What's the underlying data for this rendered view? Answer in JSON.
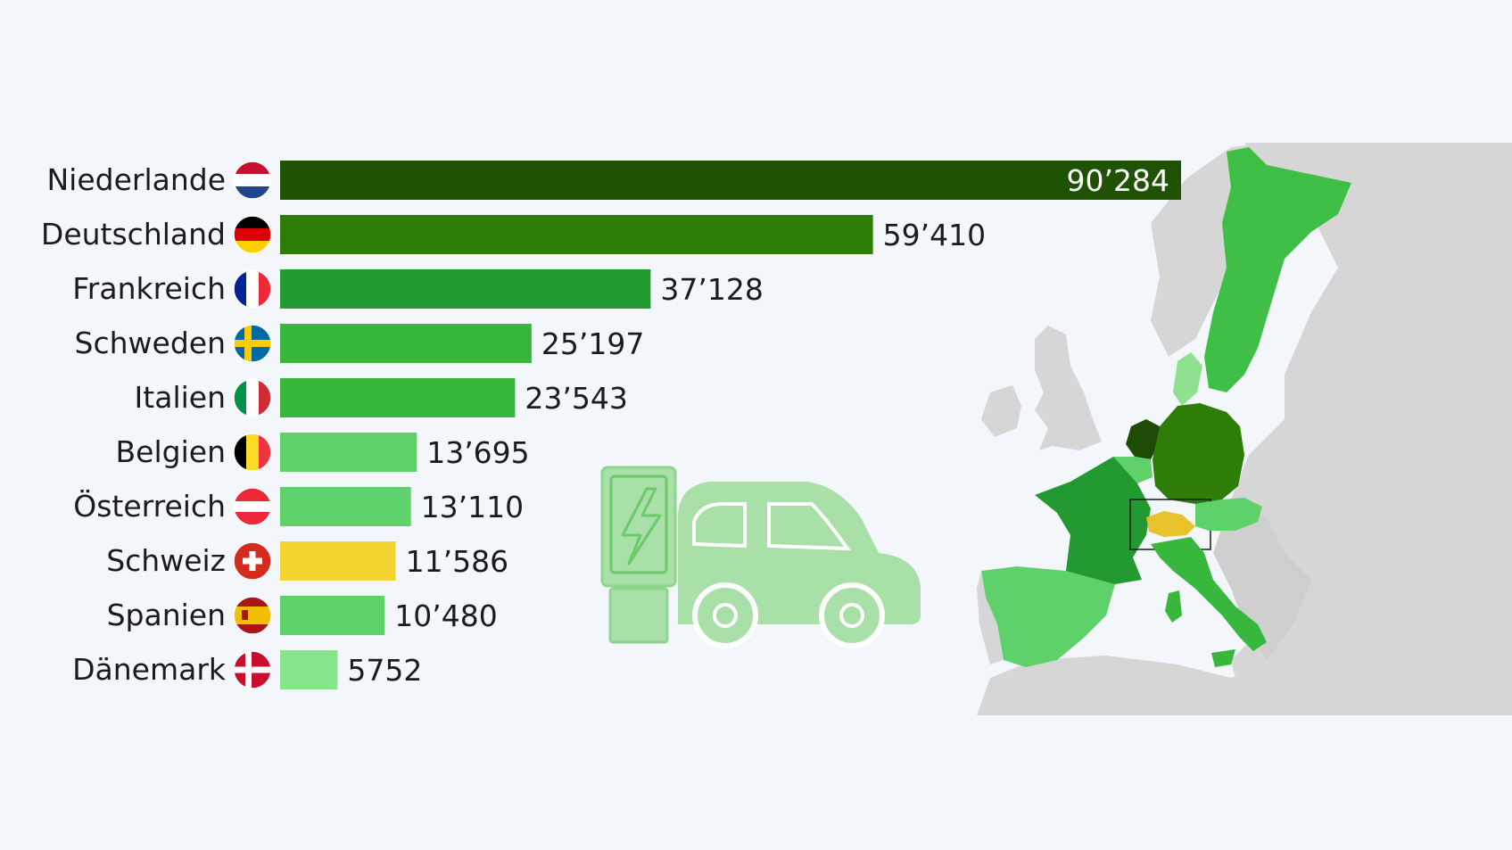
{
  "chart_data": {
    "type": "bar",
    "orientation": "horizontal",
    "categories": [
      "Niederlande",
      "Deutschland",
      "Frankreich",
      "Schweden",
      "Italien",
      "Belgien",
      "Österreich",
      "Schweiz",
      "Spanien",
      "Dänemark"
    ],
    "values": [
      90284,
      59410,
      37128,
      25197,
      23543,
      13695,
      13110,
      11586,
      10480,
      5752
    ],
    "value_labels": [
      "90’284",
      "59’410",
      "37’128",
      "25’197",
      "23’543",
      "13’695",
      "13’110",
      "11’586",
      "10’480",
      "5752"
    ],
    "bar_colors": [
      "#1f5205",
      "#2e7d09",
      "#239a31",
      "#37b83d",
      "#37b83d",
      "#5ed16a",
      "#5ed16a",
      "#f4d430",
      "#5ed16a",
      "#86e58b"
    ],
    "flags": [
      "netherlands-flag",
      "germany-flag",
      "france-flag",
      "sweden-flag",
      "italy-flag",
      "belgium-flag",
      "austria-flag",
      "switzerland-flag",
      "spain-flag",
      "denmark-flag"
    ],
    "title": "",
    "xlabel": "",
    "ylabel": "",
    "xlim": [
      0,
      90284
    ],
    "grid": false
  },
  "colors": {
    "background": "#f3f6fa",
    "highlight": "#f4d430",
    "map_land": "#d6d6d6",
    "icon_green": "#a8e0a8"
  },
  "decorations": {
    "car_icon": "electric-car-charging-icon",
    "map": "europe-map"
  }
}
